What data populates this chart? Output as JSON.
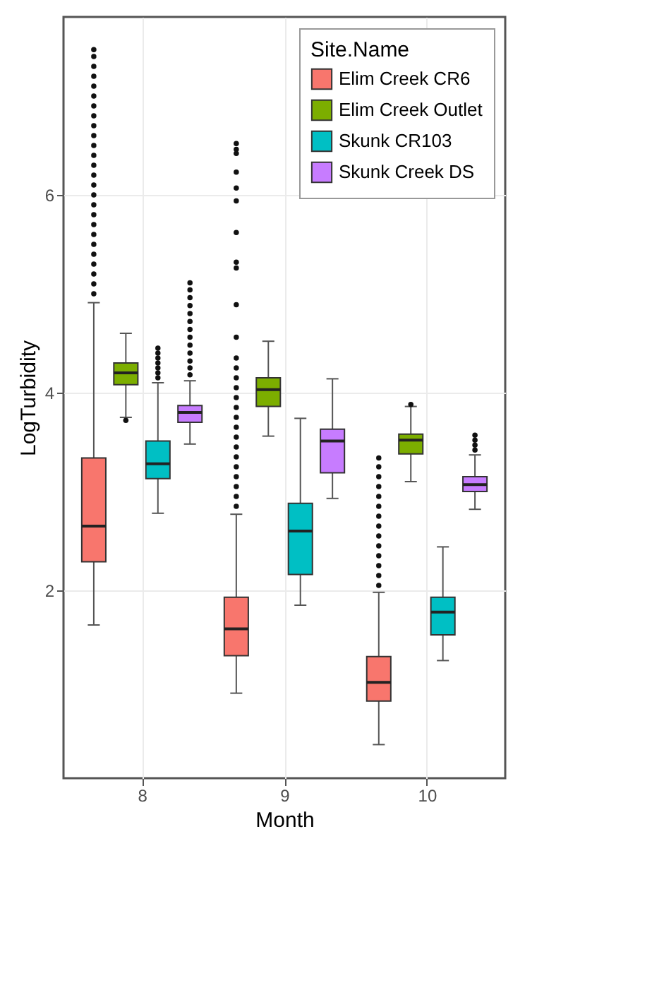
{
  "chart_data": {
    "type": "box",
    "xlabel": "Month",
    "ylabel": "LogTurbidity",
    "legend_title": "Site.Name",
    "legend": "top right",
    "grid": true,
    "categories": [
      "8",
      "9",
      "10"
    ],
    "ylim": [
      0.1,
      7.8
    ],
    "yticks": [
      {
        "value": 2,
        "label": "2"
      },
      {
        "value": 4,
        "label": "4"
      },
      {
        "value": 6,
        "label": "6"
      }
    ],
    "series": [
      {
        "name": "Elim Creek CR6",
        "color": "#f8766d",
        "boxes": [
          {
            "low": 1.65,
            "q1": 2.29,
            "median": 2.65,
            "q3": 3.34,
            "high": 4.91,
            "outliers": [
              5.0,
              5.1,
              5.2,
              5.3,
              5.4,
              5.5,
              5.6,
              5.7,
              5.8,
              5.9,
              6.0,
              6.1,
              6.2,
              6.3,
              6.4,
              6.5,
              6.6,
              6.7,
              6.8,
              6.9,
              7.0,
              7.1,
              7.2,
              7.3,
              7.4,
              7.47
            ]
          },
          {
            "low": 0.96,
            "q1": 1.34,
            "median": 1.61,
            "q3": 1.93,
            "high": 2.77,
            "outliers": [
              2.85,
              2.95,
              3.05,
              3.15,
              3.25,
              3.35,
              3.45,
              3.55,
              3.65,
              3.75,
              3.85,
              3.95,
              4.05,
              4.15,
              4.25,
              4.35,
              4.56,
              4.89,
              5.26,
              5.32,
              5.62,
              5.94,
              6.07,
              6.23,
              6.42,
              6.46,
              6.52
            ]
          },
          {
            "low": 0.44,
            "q1": 0.88,
            "median": 1.07,
            "q3": 1.33,
            "high": 1.98,
            "outliers": [
              2.05,
              2.15,
              2.25,
              2.35,
              2.45,
              2.55,
              2.65,
              2.75,
              2.85,
              2.95,
              3.05,
              3.15,
              3.25,
              3.34
            ]
          }
        ]
      },
      {
        "name": "Elim Creek Outlet",
        "color": "#7cae00",
        "boxes": [
          {
            "low": 3.75,
            "q1": 4.08,
            "median": 4.2,
            "q3": 4.3,
            "high": 4.6,
            "outliers": [
              3.72
            ]
          },
          {
            "low": 3.56,
            "q1": 3.86,
            "median": 4.03,
            "q3": 4.15,
            "high": 4.52
          },
          {
            "low": 3.1,
            "q1": 3.38,
            "median": 3.52,
            "q3": 3.58,
            "high": 3.86,
            "outliers": [
              3.88
            ]
          }
        ]
      },
      {
        "name": "Skunk CR103",
        "color": "#00bfc4",
        "boxes": [
          {
            "low": 2.78,
            "q1": 3.13,
            "median": 3.28,
            "q3": 3.51,
            "high": 4.1,
            "outliers": [
              4.15,
              4.2,
              4.25,
              4.3,
              4.35,
              4.4,
              4.45
            ]
          },
          {
            "low": 1.85,
            "q1": 2.16,
            "median": 2.6,
            "q3": 2.88,
            "high": 3.74
          },
          {
            "low": 1.29,
            "q1": 1.55,
            "median": 1.78,
            "q3": 1.93,
            "high": 2.44
          }
        ]
      },
      {
        "name": "Skunk Creek DS",
        "color": "#c77cff",
        "boxes": [
          {
            "low": 3.48,
            "q1": 3.7,
            "median": 3.8,
            "q3": 3.87,
            "high": 4.12,
            "outliers": [
              4.18,
              4.25,
              4.32,
              4.4,
              4.48,
              4.56,
              4.64,
              4.72,
              4.8,
              4.88,
              4.96,
              5.04,
              5.11
            ]
          },
          {
            "low": 2.93,
            "q1": 3.19,
            "median": 3.51,
            "q3": 3.63,
            "high": 4.14
          },
          {
            "low": 2.82,
            "q1": 3.0,
            "median": 3.07,
            "q3": 3.15,
            "high": 3.37,
            "outliers": [
              3.42,
              3.47,
              3.52,
              3.57
            ]
          }
        ]
      }
    ]
  }
}
